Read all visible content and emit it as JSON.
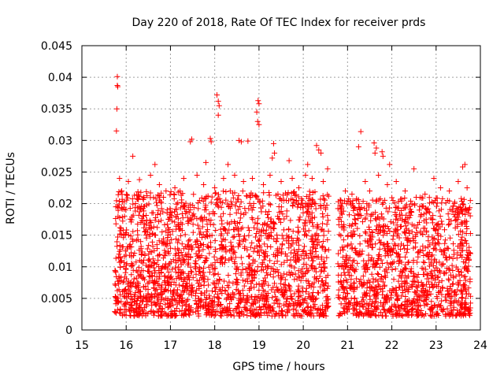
{
  "chart_data": {
    "type": "scatter",
    "title": "Day 220 of 2018, Rate Of TEC Index for receiver prds",
    "xlabel": "GPS time / hours",
    "ylabel": "ROTI / TECUs",
    "xlim": [
      15,
      24
    ],
    "ylim": [
      0,
      0.045
    ],
    "xticks": [
      15,
      16,
      17,
      18,
      19,
      20,
      21,
      22,
      23,
      24
    ],
    "yticks": [
      0,
      0.005,
      0.01,
      0.015,
      0.02,
      0.025,
      0.03,
      0.035,
      0.04,
      0.045
    ],
    "xtick_labels": [
      "15",
      "16",
      "17",
      "18",
      "19",
      "20",
      "21",
      "22",
      "23",
      "24"
    ],
    "ytick_labels": [
      "0",
      "0.005",
      "0.01",
      "0.015",
      "0.02",
      "0.025",
      "0.03",
      "0.035",
      "0.04",
      "0.045"
    ],
    "grid": true,
    "marker": "+",
    "color": "#ff0000",
    "series": [
      {
        "name": "prds",
        "points": [
          [
            15.8,
            0.0401
          ],
          [
            15.81,
            0.0385
          ],
          [
            15.8,
            0.0387
          ],
          [
            15.79,
            0.035
          ],
          [
            15.78,
            0.0315
          ],
          [
            18.05,
            0.0372
          ],
          [
            18.08,
            0.0362
          ],
          [
            18.1,
            0.0355
          ],
          [
            18.08,
            0.034
          ],
          [
            18.98,
            0.0363
          ],
          [
            19.0,
            0.0358
          ],
          [
            18.95,
            0.0345
          ],
          [
            18.97,
            0.033
          ],
          [
            19.0,
            0.0325
          ],
          [
            17.48,
            0.0302
          ],
          [
            17.45,
            0.0298
          ],
          [
            17.9,
            0.0303
          ],
          [
            17.92,
            0.0298
          ],
          [
            18.55,
            0.03
          ],
          [
            18.6,
            0.0298
          ],
          [
            18.75,
            0.0299
          ],
          [
            19.33,
            0.0295
          ],
          [
            19.35,
            0.028
          ],
          [
            19.3,
            0.0272
          ],
          [
            20.3,
            0.0292
          ],
          [
            20.35,
            0.0285
          ],
          [
            20.4,
            0.028
          ],
          [
            21.3,
            0.0314
          ],
          [
            21.25,
            0.029
          ],
          [
            21.6,
            0.0296
          ],
          [
            21.65,
            0.0288
          ],
          [
            21.62,
            0.028
          ],
          [
            21.78,
            0.0282
          ],
          [
            21.8,
            0.0275
          ],
          [
            16.15,
            0.0275
          ],
          [
            16.65,
            0.0262
          ],
          [
            17.8,
            0.0265
          ],
          [
            18.3,
            0.0262
          ],
          [
            19.68,
            0.0268
          ],
          [
            20.1,
            0.0262
          ],
          [
            20.55,
            0.0255
          ],
          [
            21.95,
            0.0262
          ],
          [
            22.5,
            0.0255
          ],
          [
            23.65,
            0.0262
          ],
          [
            23.6,
            0.0258
          ],
          [
            15.85,
            0.024
          ],
          [
            15.9,
            0.022
          ],
          [
            16.05,
            0.0235
          ],
          [
            16.3,
            0.0238
          ],
          [
            16.4,
            0.021
          ],
          [
            16.55,
            0.0245
          ],
          [
            16.75,
            0.023
          ],
          [
            16.9,
            0.022
          ],
          [
            17.1,
            0.0225
          ],
          [
            17.3,
            0.024
          ],
          [
            17.6,
            0.0245
          ],
          [
            17.75,
            0.023
          ],
          [
            18.0,
            0.0225
          ],
          [
            18.2,
            0.024
          ],
          [
            18.35,
            0.022
          ],
          [
            18.45,
            0.0245
          ],
          [
            18.65,
            0.0235
          ],
          [
            18.85,
            0.024
          ],
          [
            19.1,
            0.023
          ],
          [
            19.25,
            0.0245
          ],
          [
            19.5,
            0.0235
          ],
          [
            19.75,
            0.024
          ],
          [
            19.9,
            0.0225
          ],
          [
            20.05,
            0.0245
          ],
          [
            20.2,
            0.024
          ],
          [
            20.45,
            0.0235
          ],
          [
            20.85,
            0.0205
          ],
          [
            20.95,
            0.022
          ],
          [
            21.1,
            0.0215
          ],
          [
            21.4,
            0.0235
          ],
          [
            21.5,
            0.022
          ],
          [
            21.7,
            0.0245
          ],
          [
            21.9,
            0.023
          ],
          [
            22.1,
            0.0235
          ],
          [
            22.3,
            0.022
          ],
          [
            22.55,
            0.021
          ],
          [
            22.75,
            0.0215
          ],
          [
            22.95,
            0.024
          ],
          [
            23.1,
            0.0225
          ],
          [
            23.3,
            0.022
          ],
          [
            23.5,
            0.0235
          ],
          [
            23.7,
            0.0225
          ]
        ]
      }
    ],
    "dense_bands": [
      {
        "x_start": 15.74,
        "x_end": 20.58,
        "y_min": 0.0022,
        "y_max": 0.022
      },
      {
        "x_start": 20.78,
        "x_end": 23.78,
        "y_min": 0.0022,
        "y_max": 0.021
      }
    ]
  }
}
